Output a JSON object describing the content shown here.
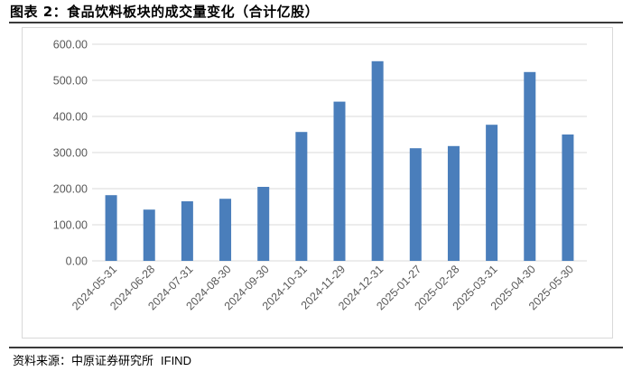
{
  "figure": {
    "title": "图表 2：食品饮料板块的成交量变化（合计亿股）",
    "source_label": "资料来源：中原证券研究所",
    "source_vendor": "IFIND"
  },
  "colors": {
    "bar": "#4a7ebb",
    "grid": "#d9d9d9",
    "tick_text": "#595959"
  },
  "chart_data": {
    "type": "bar",
    "title": "",
    "xlabel": "",
    "ylabel": "",
    "categories": [
      "2024-05-31",
      "2024-06-28",
      "2024-07-31",
      "2024-08-30",
      "2024-09-30",
      "2024-10-31",
      "2024-11-29",
      "2024-12-31",
      "2025-01-27",
      "2025-02-28",
      "2025-03-31",
      "2025-04-30",
      "2025-05-30"
    ],
    "values": [
      182,
      142,
      165,
      172,
      205,
      357,
      441,
      553,
      312,
      318,
      377,
      523,
      350
    ],
    "ylim": [
      0,
      600
    ],
    "yticks": [
      "0.00",
      "100.00",
      "200.00",
      "300.00",
      "400.00",
      "500.00",
      "600.00"
    ],
    "grid": true,
    "legend": "none"
  }
}
